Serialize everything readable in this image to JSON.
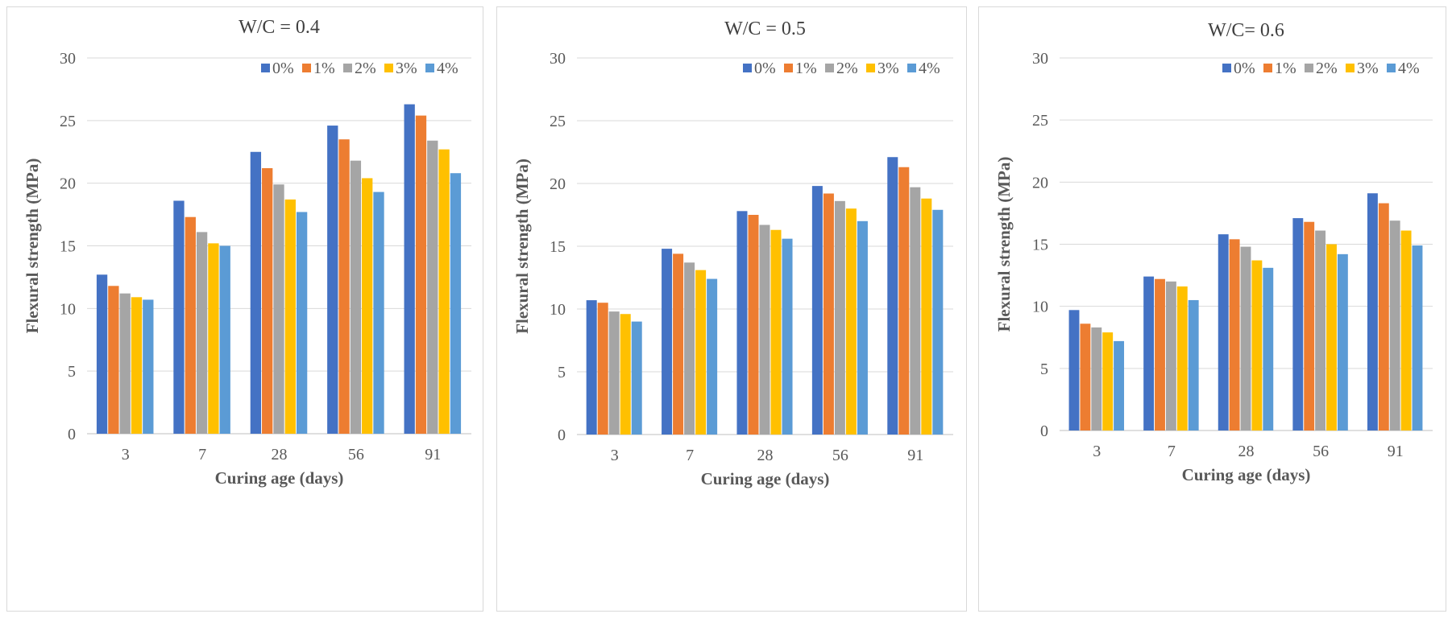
{
  "colors": [
    "#4472C4",
    "#ED7D31",
    "#A5A5A5",
    "#FFC000",
    "#5B9BD5"
  ],
  "chart_data": [
    {
      "type": "bar",
      "title": "W/C = 0.4",
      "xlabel": "Curing age (days)",
      "ylabel": "Flexural strength (MPa)",
      "ylim": [
        0,
        30
      ],
      "yticks": [
        "0",
        "5",
        "10",
        "15",
        "20",
        "25",
        "30"
      ],
      "categories": [
        "3",
        "7",
        "28",
        "56",
        "91"
      ],
      "legend": "top-right",
      "grid": true,
      "series": [
        {
          "name": "0%",
          "values": [
            12.7,
            18.6,
            22.5,
            24.6,
            26.3
          ]
        },
        {
          "name": "1%",
          "values": [
            11.8,
            17.3,
            21.2,
            23.5,
            25.4
          ]
        },
        {
          "name": "2%",
          "values": [
            11.2,
            16.1,
            19.9,
            21.8,
            23.4
          ]
        },
        {
          "name": "3%",
          "values": [
            10.9,
            15.2,
            18.7,
            20.4,
            22.7
          ]
        },
        {
          "name": "4%",
          "values": [
            10.7,
            15.0,
            17.7,
            19.3,
            20.8
          ]
        }
      ]
    },
    {
      "type": "bar",
      "title": "W/C = 0.5",
      "xlabel": "Curing age (days)",
      "ylabel": "Flexural strength (MPa)",
      "ylim": [
        0,
        30
      ],
      "yticks": [
        "0",
        "5",
        "10",
        "15",
        "20",
        "25",
        "30"
      ],
      "categories": [
        "3",
        "7",
        "28",
        "56",
        "91"
      ],
      "legend": "top-right",
      "grid": true,
      "series": [
        {
          "name": "0%",
          "values": [
            10.7,
            14.8,
            17.8,
            19.8,
            22.1
          ]
        },
        {
          "name": "1%",
          "values": [
            10.5,
            14.4,
            17.5,
            19.2,
            21.3
          ]
        },
        {
          "name": "2%",
          "values": [
            9.8,
            13.7,
            16.7,
            18.6,
            19.7
          ]
        },
        {
          "name": "3%",
          "values": [
            9.6,
            13.1,
            16.3,
            18.0,
            18.8
          ]
        },
        {
          "name": "4%",
          "values": [
            9.0,
            12.4,
            15.6,
            17.0,
            17.9
          ]
        }
      ]
    },
    {
      "type": "bar",
      "title": "W/C= 0.6",
      "xlabel": "Curing age (days)",
      "ylabel": "Flexural strength (MPa)",
      "ylim": [
        0,
        30
      ],
      "yticks": [
        "0",
        "5",
        "10",
        "15",
        "20",
        "25",
        "30"
      ],
      "categories": [
        "3",
        "7",
        "28",
        "56",
        "91"
      ],
      "legend": "top-right",
      "grid": true,
      "series": [
        {
          "name": "0%",
          "values": [
            9.7,
            12.4,
            15.8,
            17.1,
            19.1
          ]
        },
        {
          "name": "1%",
          "values": [
            8.6,
            12.2,
            15.4,
            16.8,
            18.3
          ]
        },
        {
          "name": "2%",
          "values": [
            8.3,
            12.0,
            14.8,
            16.1,
            16.9
          ]
        },
        {
          "name": "3%",
          "values": [
            7.9,
            11.6,
            13.7,
            15.0,
            16.1
          ]
        },
        {
          "name": "4%",
          "values": [
            7.2,
            10.5,
            13.1,
            14.2,
            14.9
          ]
        }
      ]
    }
  ]
}
